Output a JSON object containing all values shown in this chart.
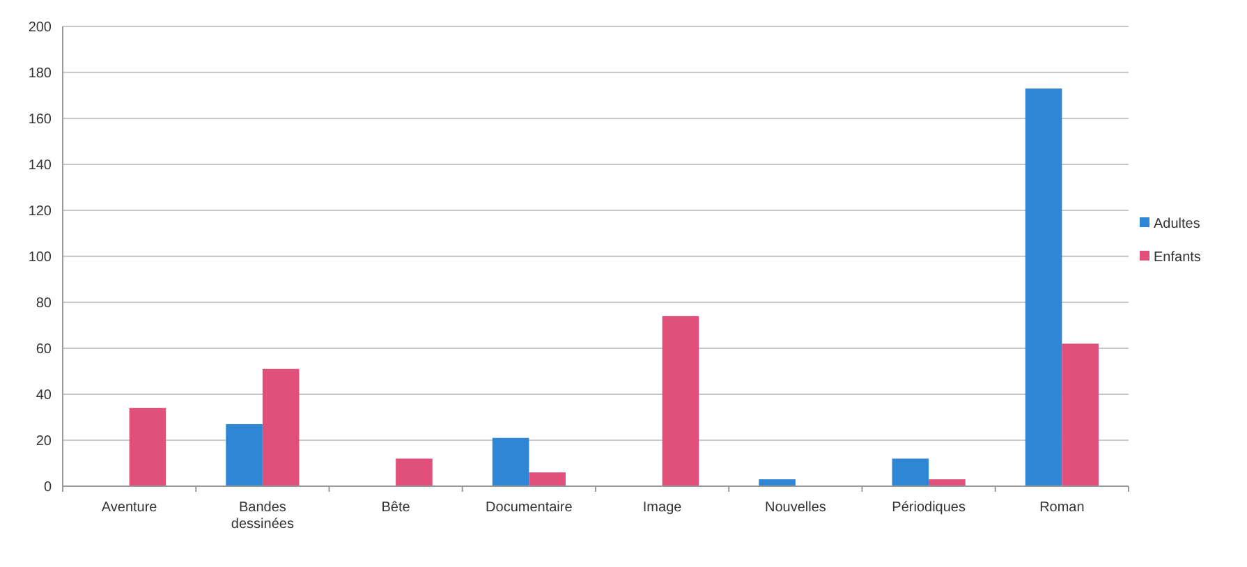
{
  "chart_data": {
    "type": "bar",
    "categories": [
      "Aventure",
      "Bandes dessinées",
      "Bête",
      "Documentaire",
      "Image",
      "Nouvelles",
      "Périodiques",
      "Roman"
    ],
    "series": [
      {
        "name": "Adultes",
        "color": "#2e86d4",
        "values": [
          0,
          27,
          0,
          21,
          0,
          3,
          12,
          173
        ]
      },
      {
        "name": "Enfants",
        "color": "#e0507a",
        "values": [
          34,
          51,
          12,
          6,
          74,
          0,
          3,
          62
        ]
      }
    ],
    "ylim": [
      0,
      200
    ],
    "yticks": [
      0,
      20,
      40,
      60,
      80,
      100,
      120,
      140,
      160,
      180,
      200
    ],
    "grid": "y",
    "legend": "right"
  }
}
